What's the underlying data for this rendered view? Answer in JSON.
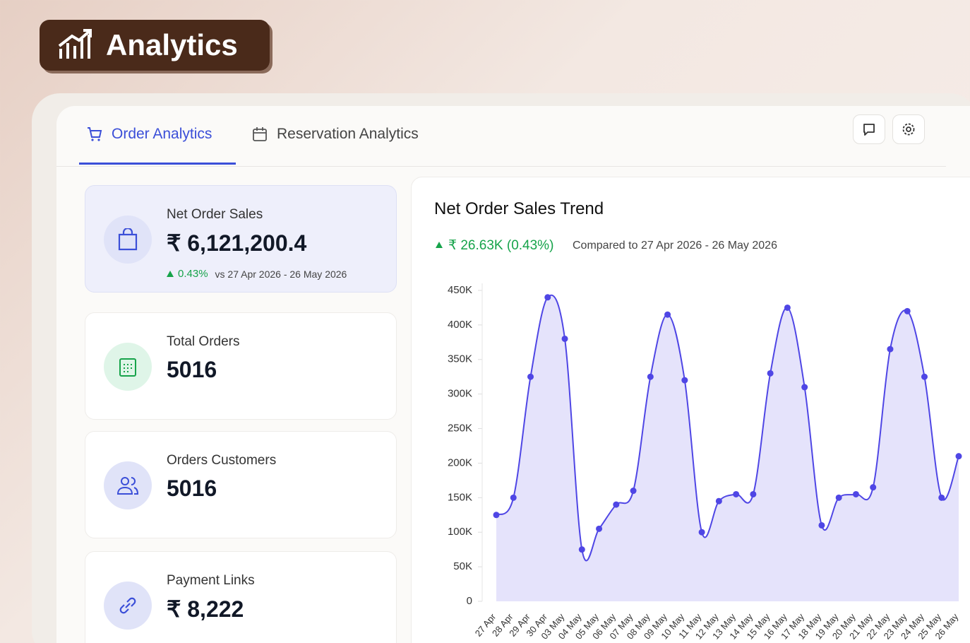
{
  "badge": {
    "title": "Analytics"
  },
  "tabs": [
    {
      "label": "Order Analytics"
    },
    {
      "label": "Reservation Analytics"
    }
  ],
  "cards": [
    {
      "label": "Net Order Sales",
      "value": "₹ 6,121,200.4",
      "change": "0.43%",
      "compare": "vs 27 Apr 2026 - 26 May 2026"
    },
    {
      "label": "Total Orders",
      "value": "5016"
    },
    {
      "label": "Orders Customers",
      "value": "5016"
    },
    {
      "label": "Payment Links",
      "value": "₹ 8,222"
    }
  ],
  "chart_data": {
    "type": "area",
    "title": "Net Order Sales Trend",
    "change": "₹ 26.63K (0.43%)",
    "subtitle": "Compared to 27 Apr 2026 - 26 May 2026",
    "categories": [
      "27 Apr",
      "28 Apr",
      "29 Apr",
      "30 Apr",
      "03 May",
      "04 May",
      "05 May",
      "06 May",
      "07 May",
      "08 May",
      "09 May",
      "10 May",
      "11 May",
      "12 May",
      "13 May",
      "14 May",
      "15 May",
      "16 May",
      "17 May",
      "18 May",
      "19 May",
      "20 May",
      "21 May",
      "22 May",
      "23 May",
      "24 May",
      "25 May",
      "26 May"
    ],
    "values": [
      125000,
      150000,
      325000,
      440000,
      380000,
      75000,
      105000,
      140000,
      160000,
      325000,
      415000,
      320000,
      100000,
      145000,
      155000,
      155000,
      330000,
      425000,
      310000,
      110000,
      150000,
      155000,
      165000,
      365000,
      420000,
      325000,
      150000,
      210000
    ],
    "color": "#4f46e5",
    "ylim": [
      0,
      450000
    ],
    "yticks": [
      {
        "value": 0,
        "label": "0"
      },
      {
        "value": 50000,
        "label": "50K"
      },
      {
        "value": 100000,
        "label": "100K"
      },
      {
        "value": 150000,
        "label": "150K"
      },
      {
        "value": 200000,
        "label": "200K"
      },
      {
        "value": 250000,
        "label": "250K"
      },
      {
        "value": 300000,
        "label": "300K"
      },
      {
        "value": 350000,
        "label": "350K"
      },
      {
        "value": 400000,
        "label": "400K"
      },
      {
        "value": 450000,
        "label": "450K"
      }
    ]
  }
}
